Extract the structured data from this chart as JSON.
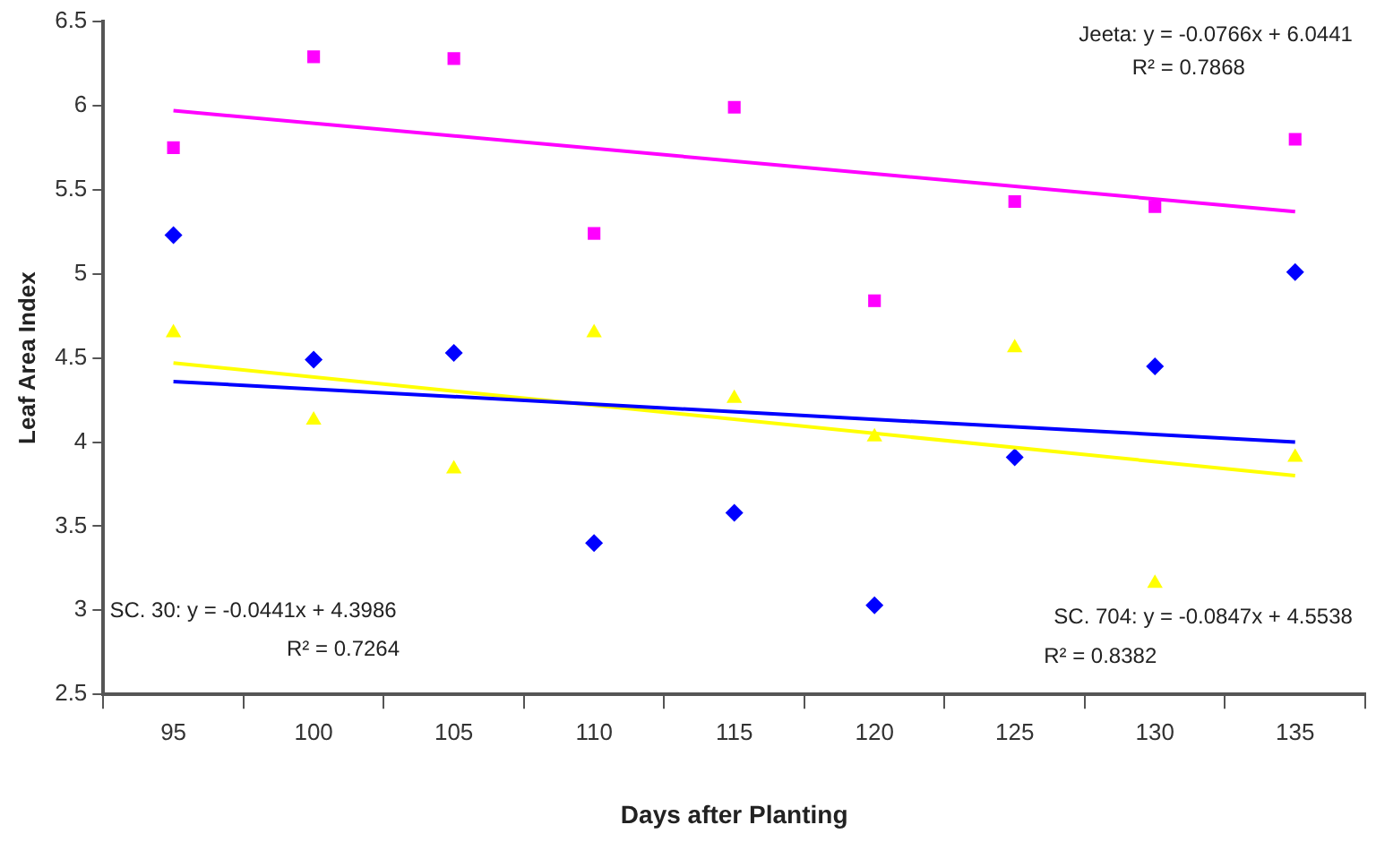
{
  "chart_data": {
    "type": "scatter",
    "xlabel": "Days after Planting",
    "ylabel": "Leaf Area Index",
    "categories": [
      "95",
      "100",
      "105",
      "110",
      "115",
      "120",
      "125",
      "130",
      "135"
    ],
    "ylim": [
      2.5,
      6.5
    ],
    "yticks": [
      2.5,
      3,
      3.5,
      4,
      4.5,
      5,
      5.5,
      6,
      6.5
    ],
    "grid": false,
    "legend": false,
    "series": [
      {
        "marker": "square",
        "color": "#ff00ff",
        "values": [
          5.75,
          6.29,
          6.28,
          5.24,
          5.99,
          4.84,
          5.43,
          5.4,
          5.8
        ]
      },
      {
        "marker": "diamond",
        "color": "#0000ff",
        "values": [
          5.23,
          4.49,
          4.53,
          3.4,
          3.58,
          3.03,
          3.91,
          4.45,
          5.01
        ]
      },
      {
        "marker": "triangle",
        "color": "#ffff00",
        "values": [
          4.65,
          4.13,
          3.84,
          4.65,
          4.26,
          4.03,
          4.56,
          3.16,
          3.91
        ]
      },
      {
        "type": "line",
        "marker": "none",
        "color": "#ff00ff",
        "x": [
          "95",
          "135"
        ],
        "values": [
          5.97,
          5.37
        ]
      },
      {
        "type": "line",
        "marker": "none",
        "color": "#0000ff",
        "x": [
          "95",
          "135"
        ],
        "values": [
          4.36,
          4.0
        ]
      },
      {
        "type": "line",
        "marker": "none",
        "color": "#ffff00",
        "x": [
          "95",
          "135"
        ],
        "values": [
          4.47,
          3.8
        ]
      }
    ],
    "annotations": [
      "Jeeta: y = -0.0766x + 6.0441",
      "R² = 0.7868",
      "SC. 30: y = -0.0441x + 4.3986",
      "R² = 0.7264",
      "SC. 704: y = -0.0847x + 4.5538",
      "R² = 0.8382"
    ]
  }
}
